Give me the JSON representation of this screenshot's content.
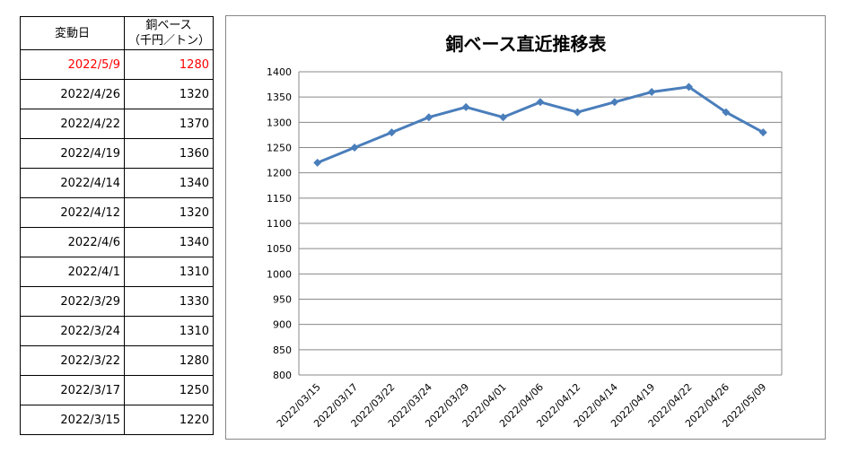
{
  "table": {
    "headers": {
      "date": "変動日",
      "value_line1": "銅ベース",
      "value_line2": "（千円／トン）"
    },
    "rows": [
      {
        "date": "2022/5/9",
        "value": "1280",
        "highlight": true
      },
      {
        "date": "2022/4/26",
        "value": "1320"
      },
      {
        "date": "2022/4/22",
        "value": "1370"
      },
      {
        "date": "2022/4/19",
        "value": "1360"
      },
      {
        "date": "2022/4/14",
        "value": "1340"
      },
      {
        "date": "2022/4/12",
        "value": "1320"
      },
      {
        "date": "2022/4/6",
        "value": "1340"
      },
      {
        "date": "2022/4/1",
        "value": "1310"
      },
      {
        "date": "2022/3/29",
        "value": "1330"
      },
      {
        "date": "2022/3/24",
        "value": "1310"
      },
      {
        "date": "2022/3/22",
        "value": "1280"
      },
      {
        "date": "2022/3/17",
        "value": "1250"
      },
      {
        "date": "2022/3/15",
        "value": "1220"
      }
    ],
    "highlight_color": "#ff0000"
  },
  "chart_data": {
    "type": "line",
    "title": "銅ベース直近推移表",
    "categories": [
      "2022/03/15",
      "2022/03/17",
      "2022/03/22",
      "2022/03/24",
      "2022/03/29",
      "2022/04/01",
      "2022/04/06",
      "2022/04/12",
      "2022/04/14",
      "2022/04/19",
      "2022/04/22",
      "2022/04/26",
      "2022/05/09"
    ],
    "values": [
      1220,
      1250,
      1280,
      1310,
      1330,
      1310,
      1340,
      1320,
      1340,
      1360,
      1370,
      1320,
      1280
    ],
    "ylim": [
      800,
      1400
    ],
    "yticks": [
      800,
      850,
      900,
      950,
      1000,
      1050,
      1100,
      1150,
      1200,
      1250,
      1300,
      1350,
      1400
    ],
    "grid": true,
    "marker": "diamond",
    "line_color": "#4a7ebb"
  }
}
